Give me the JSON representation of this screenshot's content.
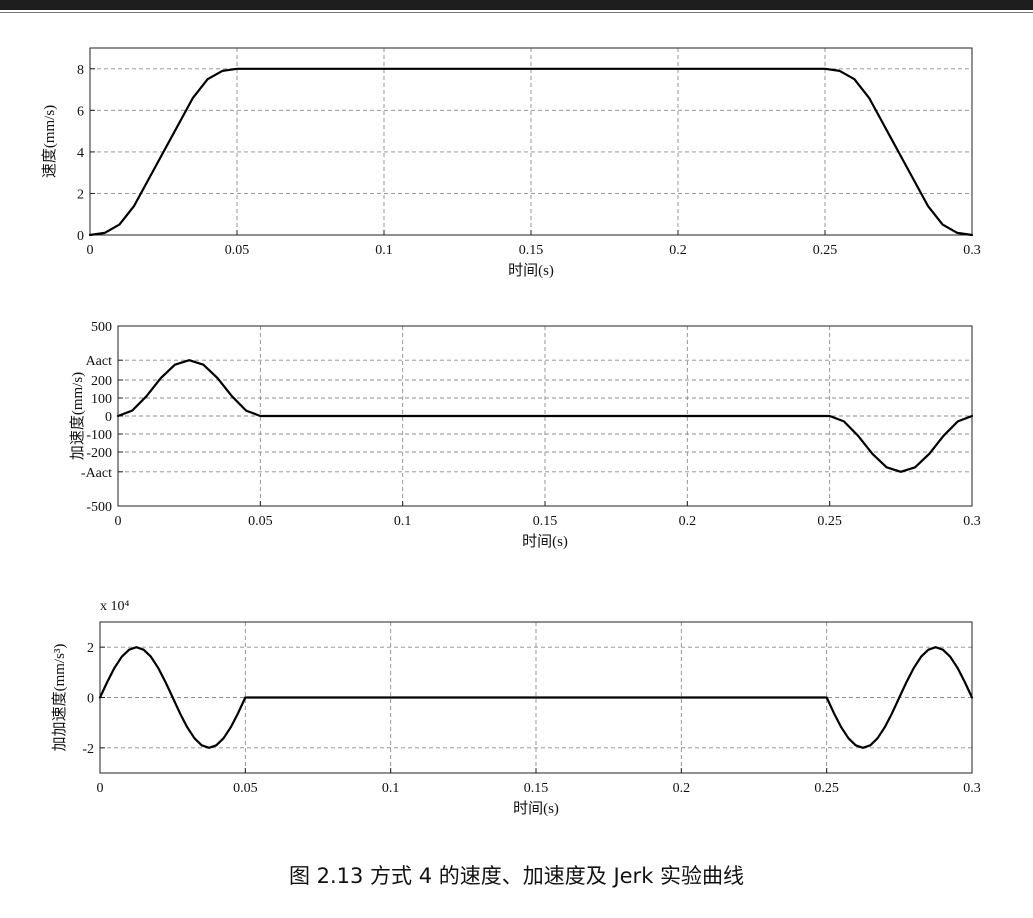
{
  "chart_data": [
    {
      "type": "line",
      "xlabel": "时间(s)",
      "ylabel": "速度(mm/s)",
      "xlim": [
        0,
        0.3
      ],
      "ylim": [
        0,
        9
      ],
      "xticks": [
        0,
        0.05,
        0.1,
        0.15,
        0.2,
        0.25,
        0.3
      ],
      "xtick_labels": [
        "0",
        "0.05",
        "0.1",
        "0.15",
        "0.2",
        "0.25",
        "0.3"
      ],
      "yticks": [
        0,
        2,
        4,
        6,
        8
      ],
      "ytick_labels": [
        "0",
        "2",
        "4",
        "6",
        "8"
      ],
      "grid": true,
      "series": [
        {
          "x": [
            0,
            0.005,
            0.01,
            0.015,
            0.02,
            0.025,
            0.03,
            0.035,
            0.04,
            0.045,
            0.05,
            0.1,
            0.15,
            0.2,
            0.25,
            0.255,
            0.26,
            0.265,
            0.27,
            0.275,
            0.28,
            0.285,
            0.29,
            0.295,
            0.3
          ],
          "y": [
            0,
            0.1,
            0.5,
            1.4,
            2.7,
            4.0,
            5.3,
            6.6,
            7.5,
            7.9,
            8,
            8,
            8,
            8,
            8,
            7.9,
            7.5,
            6.6,
            5.3,
            4.0,
            2.7,
            1.4,
            0.5,
            0.1,
            0
          ]
        }
      ]
    },
    {
      "type": "line",
      "xlabel": "时间(s)",
      "ylabel": "加速度(mm/s)",
      "xlim": [
        0,
        0.3
      ],
      "ylim": [
        -500,
        500
      ],
      "xticks": [
        0,
        0.05,
        0.1,
        0.15,
        0.2,
        0.25,
        0.3
      ],
      "xtick_labels": [
        "0",
        "0.05",
        "0.1",
        "0.15",
        "0.2",
        "0.25",
        "0.3"
      ],
      "yticks": [
        500,
        310,
        200,
        100,
        0,
        -100,
        -200,
        -310,
        -500
      ],
      "ytick_labels": [
        "500",
        "Aact",
        "200",
        "100",
        "0",
        "-100",
        "-200",
        "-Aact",
        "-500"
      ],
      "grid": true,
      "series": [
        {
          "x": [
            0,
            0.005,
            0.01,
            0.015,
            0.02,
            0.025,
            0.03,
            0.035,
            0.04,
            0.045,
            0.05,
            0.1,
            0.15,
            0.2,
            0.25,
            0.255,
            0.26,
            0.265,
            0.27,
            0.275,
            0.28,
            0.285,
            0.29,
            0.295,
            0.3
          ],
          "y": [
            0,
            30,
            110,
            210,
            285,
            310,
            285,
            210,
            110,
            30,
            0,
            0,
            0,
            0,
            0,
            -30,
            -110,
            -210,
            -285,
            -310,
            -285,
            -210,
            -110,
            -30,
            0
          ]
        }
      ]
    },
    {
      "type": "line",
      "xlabel": "时间(s)",
      "ylabel": "加加速度(mm/s³)",
      "scale_label": "x 10⁴",
      "xlim": [
        0,
        0.3
      ],
      "ylim": [
        -3,
        3
      ],
      "xticks": [
        0,
        0.05,
        0.1,
        0.15,
        0.2,
        0.25,
        0.3
      ],
      "xtick_labels": [
        "0",
        "0.05",
        "0.1",
        "0.15",
        "0.2",
        "0.25",
        "0.3"
      ],
      "yticks": [
        2,
        0,
        -2
      ],
      "ytick_labels": [
        "2",
        "0",
        "-2"
      ],
      "grid": true,
      "series": [
        {
          "x": [
            0,
            0.0025,
            0.005,
            0.0075,
            0.01,
            0.0125,
            0.015,
            0.0175,
            0.02,
            0.0225,
            0.025,
            0.0275,
            0.03,
            0.0325,
            0.035,
            0.0375,
            0.04,
            0.0425,
            0.045,
            0.0475,
            0.05,
            0.1,
            0.15,
            0.2,
            0.25,
            0.2525,
            0.255,
            0.2575,
            0.26,
            0.2625,
            0.265,
            0.2675,
            0.27,
            0.2725,
            0.275,
            0.2775,
            0.28,
            0.2825,
            0.285,
            0.2875,
            0.29,
            0.2925,
            0.295,
            0.2975,
            0.3
          ],
          "y": [
            0,
            0.62,
            1.18,
            1.62,
            1.9,
            2.0,
            1.9,
            1.62,
            1.18,
            0.62,
            0,
            -0.62,
            -1.18,
            -1.62,
            -1.9,
            -2.0,
            -1.9,
            -1.62,
            -1.18,
            -0.62,
            0,
            0,
            0,
            0,
            0,
            -0.62,
            -1.18,
            -1.62,
            -1.9,
            -2.0,
            -1.9,
            -1.62,
            -1.18,
            -0.62,
            0,
            0.62,
            1.18,
            1.62,
            1.9,
            2.0,
            1.9,
            1.62,
            1.18,
            0.62,
            0
          ]
        }
      ]
    }
  ],
  "caption": "图 2.13 方式 4 的速度、加速度及 Jerk 实验曲线"
}
